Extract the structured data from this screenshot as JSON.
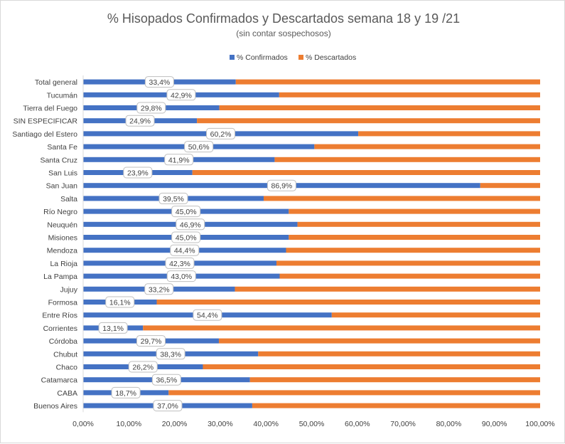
{
  "chart_data": {
    "type": "bar",
    "orientation": "horizontal",
    "stacked": "percent",
    "title": "% Hisopados Confirmados y Descartados semana 18 y 19 /21",
    "subtitle": "(sin contar sospechosos)",
    "categories": [
      "Total general",
      "Tucumán",
      "Tierra del Fuego",
      "SIN ESPECIFICAR",
      "Santiago del Estero",
      "Santa Fe",
      "Santa Cruz",
      "San Luis",
      "San Juan",
      "Salta",
      "Río Negro",
      "Neuquén",
      "Misiones",
      "Mendoza",
      "La Rioja",
      "La Pampa",
      "Jujuy",
      "Formosa",
      "Entre Ríos",
      "Corrientes",
      "Córdoba",
      "Chubut",
      "Chaco",
      "Catamarca",
      "CABA",
      "Buenos Aires"
    ],
    "series": [
      {
        "name": "% Confirmados",
        "color": "#4472c4",
        "values": [
          33.4,
          42.9,
          29.8,
          24.9,
          60.2,
          50.6,
          41.9,
          23.9,
          86.9,
          39.5,
          45.0,
          46.9,
          45.0,
          44.4,
          42.3,
          43.0,
          33.2,
          16.1,
          54.4,
          13.1,
          29.7,
          38.3,
          26.2,
          36.5,
          18.7,
          37.0
        ],
        "labels": [
          "33,4%",
          "42,9%",
          "29,8%",
          "24,9%",
          "60,2%",
          "50,6%",
          "41,9%",
          "23,9%",
          "86,9%",
          "39,5%",
          "45,0%",
          "46,9%",
          "45,0%",
          "44,4%",
          "42,3%",
          "43,0%",
          "33,2%",
          "16,1%",
          "54,4%",
          "13,1%",
          "29,7%",
          "38,3%",
          "26,2%",
          "36,5%",
          "18,7%",
          "37,0%"
        ]
      },
      {
        "name": "% Descartados",
        "color": "#ed7d31",
        "values": [
          66.6,
          57.1,
          70.2,
          75.1,
          39.8,
          49.4,
          58.1,
          76.1,
          13.1,
          60.5,
          55.0,
          53.1,
          55.0,
          55.6,
          57.7,
          57.0,
          66.8,
          83.9,
          45.6,
          86.9,
          70.3,
          61.7,
          73.8,
          63.5,
          81.3,
          63.0
        ]
      }
    ],
    "xlim": [
      0,
      100
    ],
    "xticks": [
      "0,00%",
      "10,00%",
      "20,00%",
      "30,00%",
      "40,00%",
      "50,00%",
      "60,00%",
      "70,00%",
      "80,00%",
      "90,00%",
      "100,00%"
    ],
    "legend": "top",
    "grid": false
  }
}
